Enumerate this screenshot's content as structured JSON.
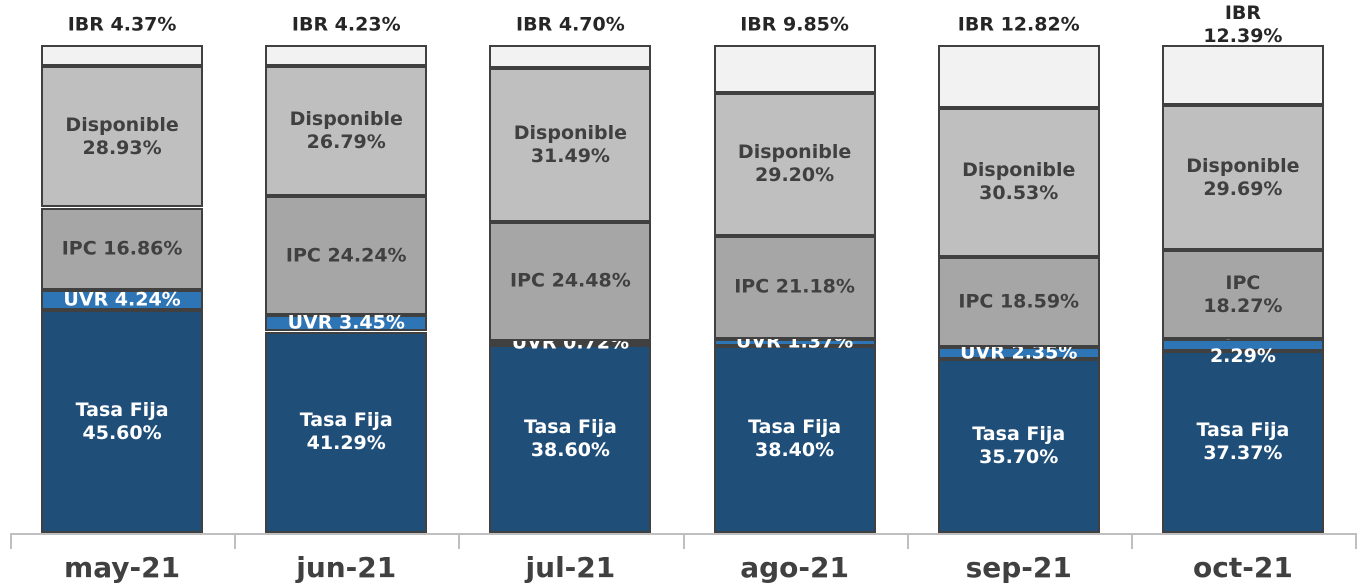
{
  "chart_data": {
    "type": "stacked-bar",
    "categories": [
      "may-21",
      "jun-21",
      "jul-21",
      "ago-21",
      "sep-21",
      "oct-21"
    ],
    "ylim": [
      0,
      100
    ],
    "series": [
      {
        "color": "#1f4e79",
        "label_color": "#ffffff",
        "values": [
          45.6,
          41.29,
          38.6,
          38.4,
          35.7,
          37.37
        ],
        "value_labels": [
          "Tasa Fija\n45.60%",
          "Tasa Fija\n41.29%",
          "Tasa Fija\n38.60%",
          "Tasa Fija\n38.40%",
          "Tasa Fija\n35.70%",
          "Tasa Fija\n37.37%"
        ]
      },
      {
        "color": "#2e75b6",
        "label_color": "#ffffff",
        "values": [
          4.24,
          3.45,
          0.72,
          1.37,
          2.35,
          2.29
        ],
        "value_labels": [
          "UVR 4.24%",
          "UVR 3.45%",
          "UVR 0.72%",
          "UVR 1.37%",
          "UVR 2.35%",
          "UVR 2.29%"
        ]
      },
      {
        "color": "#a6a6a6",
        "label_color": "#404040",
        "values": [
          16.86,
          24.24,
          24.48,
          21.18,
          18.59,
          18.27
        ],
        "value_labels": [
          "IPC 16.86%",
          "IPC 24.24%",
          "IPC 24.48%",
          "IPC 21.18%",
          "IPC 18.59%",
          "IPC 18.27%"
        ]
      },
      {
        "color": "#bfbfbf",
        "label_color": "#404040",
        "values": [
          28.93,
          26.79,
          31.49,
          29.2,
          30.53,
          29.69
        ],
        "value_labels": [
          "Disponible\n28.93%",
          "Disponible\n26.79%",
          "Disponible\n31.49%",
          "Disponible\n29.20%",
          "Disponible\n30.53%",
          "Disponible\n29.69%"
        ]
      },
      {
        "color": "#f2f2f2",
        "label_color": "#404040",
        "values": [
          4.37,
          4.23,
          4.7,
          9.85,
          12.82,
          12.39
        ],
        "value_labels": [
          "IBR 4.37%",
          "IBR 4.23%",
          "IBR 4.70%",
          "IBR 9.85%",
          "IBR 12.82%",
          "IBR 12.39%"
        ]
      }
    ]
  }
}
